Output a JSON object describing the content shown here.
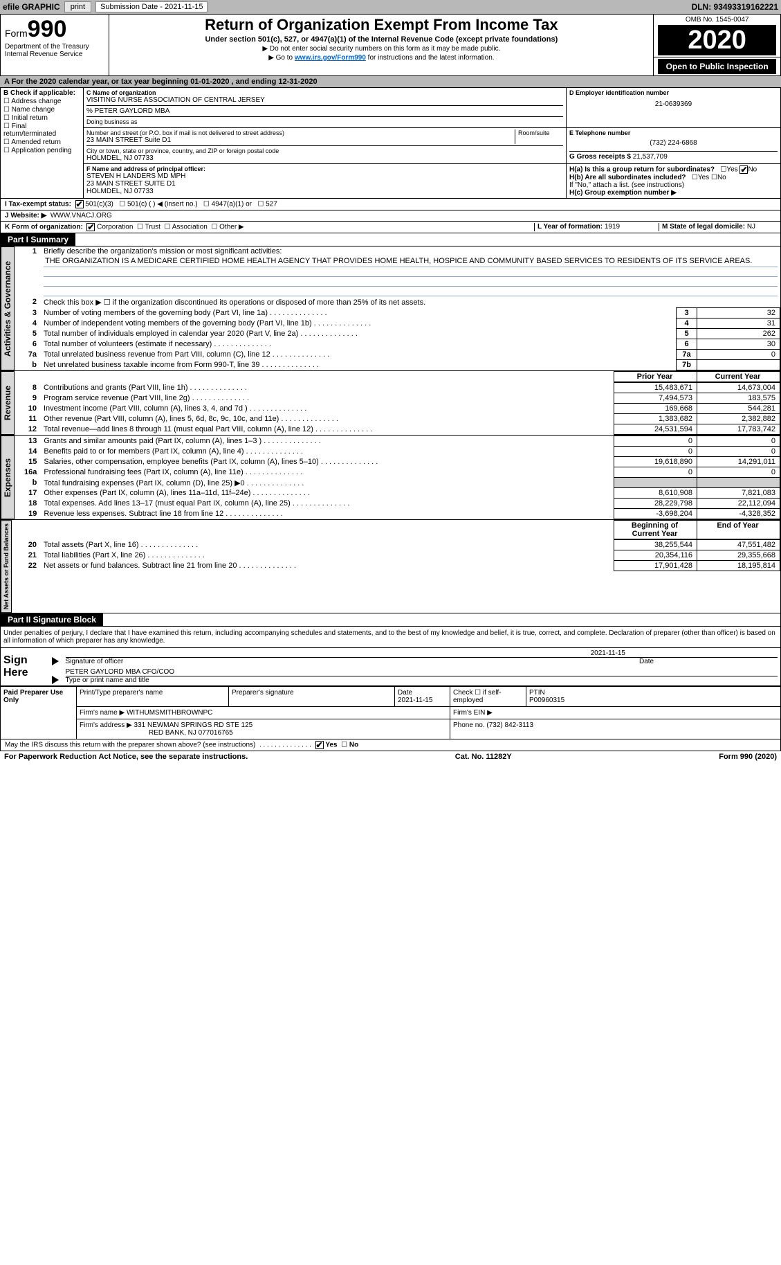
{
  "topbar": {
    "efile": "efile GRAPHIC",
    "print": "print",
    "subdate_label": "Submission Date - 2021-11-15",
    "dln": "DLN: 93493319162221"
  },
  "header": {
    "form_prefix": "Form",
    "form_num": "990",
    "dept": "Department of the Treasury\nInternal Revenue Service",
    "title": "Return of Organization Exempt From Income Tax",
    "subtitle": "Under section 501(c), 527, or 4947(a)(1) of the Internal Revenue Code (except private foundations)",
    "note1": "▶ Do not enter social security numbers on this form as it may be made public.",
    "note2_pre": "▶ Go to ",
    "note2_link": "www.irs.gov/Form990",
    "note2_post": " for instructions and the latest information.",
    "omb": "OMB No. 1545-0047",
    "year": "2020",
    "public": "Open to Public Inspection"
  },
  "row_a": "A For the 2020 calendar year, or tax year beginning 01-01-2020   , and ending 12-31-2020",
  "check_b": {
    "title": "B Check if applicable:",
    "items": [
      "Address change",
      "Name change",
      "Initial return",
      "Final return/terminated",
      "Amended return",
      "Application pending"
    ]
  },
  "block_c": {
    "label_name": "C Name of organization",
    "org_name": "VISITING NURSE ASSOCIATION OF CENTRAL JERSEY",
    "care_of": "% PETER GAYLORD MBA",
    "dba_label": "Doing business as",
    "street_label": "Number and street (or P.O. box if mail is not delivered to street address)",
    "room_label": "Room/suite",
    "street": "23 MAIN STREET Suite D1",
    "city_label": "City or town, state or province, country, and ZIP or foreign postal code",
    "city": "HOLMDEL, NJ  07733"
  },
  "block_d": {
    "label": "D Employer identification number",
    "ein": "21-0639369"
  },
  "block_e": {
    "label": "E Telephone number",
    "phone": "(732) 224-6868"
  },
  "block_g": {
    "label": "G Gross receipts $",
    "amount": "21,537,709"
  },
  "block_f": {
    "label": "F Name and address of principal officer:",
    "name": "STEVEN H LANDERS MD MPH",
    "street": "23 MAIN STREET SUITE D1",
    "city": "HOLMDEL, NJ  07733"
  },
  "block_h": {
    "ha": "H(a)  Is this a group return for subordinates?",
    "hb": "H(b)  Are all subordinates included?",
    "hb_note": "If \"No,\" attach a list. (see instructions)",
    "hc": "H(c)  Group exemption number ▶",
    "yes": "Yes",
    "no": "No"
  },
  "row_i": {
    "label": "I   Tax-exempt status:",
    "opts": [
      "501(c)(3)",
      "501(c) (  ) ◀ (insert no.)",
      "4947(a)(1) or",
      "527"
    ]
  },
  "row_j": {
    "label": "J   Website: ▶",
    "value": "WWW.VNACJ.ORG"
  },
  "row_k": {
    "label": "K Form of organization:",
    "opts": [
      "Corporation",
      "Trust",
      "Association",
      "Other ▶"
    ]
  },
  "row_l": {
    "label": "L Year of formation:",
    "value": "1919"
  },
  "row_m": {
    "label": "M State of legal domicile:",
    "value": "NJ"
  },
  "part1": {
    "title": "Part I      Summary"
  },
  "gov": {
    "q1": "Briefly describe the organization's mission or most significant activities:",
    "mission": "THE ORGANIZATION IS A MEDICARE CERTIFIED HOME HEALTH AGENCY THAT PROVIDES HOME HEALTH, HOSPICE AND COMMUNITY BASED SERVICES TO RESIDENTS OF ITS SERVICE AREAS.",
    "q2": "Check this box ▶ ☐  if the organization discontinued its operations or disposed of more than 25% of its net assets.",
    "lines": [
      {
        "n": "3",
        "label": "Number of voting members of the governing body (Part VI, line 1a)",
        "box": "3",
        "val": "32"
      },
      {
        "n": "4",
        "label": "Number of independent voting members of the governing body (Part VI, line 1b)",
        "box": "4",
        "val": "31"
      },
      {
        "n": "5",
        "label": "Total number of individuals employed in calendar year 2020 (Part V, line 2a)",
        "box": "5",
        "val": "262"
      },
      {
        "n": "6",
        "label": "Total number of volunteers (estimate if necessary)",
        "box": "6",
        "val": "30"
      },
      {
        "n": "7a",
        "label": "Total unrelated business revenue from Part VIII, column (C), line 12",
        "box": "7a",
        "val": "0"
      },
      {
        "n": "b",
        "label": "Net unrelated business taxable income from Form 990-T, line 39",
        "box": "7b",
        "val": ""
      }
    ]
  },
  "rev_hdr": {
    "prior": "Prior Year",
    "curr": "Current Year"
  },
  "revenue": [
    {
      "n": "8",
      "label": "Contributions and grants (Part VIII, line 1h)",
      "p": "15,483,671",
      "c": "14,673,004"
    },
    {
      "n": "9",
      "label": "Program service revenue (Part VIII, line 2g)",
      "p": "7,494,573",
      "c": "183,575"
    },
    {
      "n": "10",
      "label": "Investment income (Part VIII, column (A), lines 3, 4, and 7d )",
      "p": "169,668",
      "c": "544,281"
    },
    {
      "n": "11",
      "label": "Other revenue (Part VIII, column (A), lines 5, 6d, 8c, 9c, 10c, and 11e)",
      "p": "1,383,682",
      "c": "2,382,882"
    },
    {
      "n": "12",
      "label": "Total revenue—add lines 8 through 11 (must equal Part VIII, column (A), line 12)",
      "p": "24,531,594",
      "c": "17,783,742"
    }
  ],
  "expenses": [
    {
      "n": "13",
      "label": "Grants and similar amounts paid (Part IX, column (A), lines 1–3 )",
      "p": "0",
      "c": "0"
    },
    {
      "n": "14",
      "label": "Benefits paid to or for members (Part IX, column (A), line 4)",
      "p": "0",
      "c": "0"
    },
    {
      "n": "15",
      "label": "Salaries, other compensation, employee benefits (Part IX, column (A), lines 5–10)",
      "p": "19,618,890",
      "c": "14,291,011"
    },
    {
      "n": "16a",
      "label": "Professional fundraising fees (Part IX, column (A), line 11e)",
      "p": "0",
      "c": "0"
    },
    {
      "n": "b",
      "label": "Total fundraising expenses (Part IX, column (D), line 25) ▶0",
      "p": "",
      "c": "",
      "grey": true
    },
    {
      "n": "17",
      "label": "Other expenses (Part IX, column (A), lines 11a–11d, 11f–24e)",
      "p": "8,610,908",
      "c": "7,821,083"
    },
    {
      "n": "18",
      "label": "Total expenses. Add lines 13–17 (must equal Part IX, column (A), line 25)",
      "p": "28,229,798",
      "c": "22,112,094"
    },
    {
      "n": "19",
      "label": "Revenue less expenses. Subtract line 18 from line 12",
      "p": "-3,698,204",
      "c": "-4,328,352"
    }
  ],
  "net_hdr": {
    "beg": "Beginning of Current Year",
    "end": "End of Year"
  },
  "netassets": [
    {
      "n": "20",
      "label": "Total assets (Part X, line 16)",
      "p": "38,255,544",
      "c": "47,551,482"
    },
    {
      "n": "21",
      "label": "Total liabilities (Part X, line 26)",
      "p": "20,354,116",
      "c": "29,355,668"
    },
    {
      "n": "22",
      "label": "Net assets or fund balances. Subtract line 21 from line 20",
      "p": "17,901,428",
      "c": "18,195,814"
    }
  ],
  "part2": {
    "title": "Part II      Signature Block"
  },
  "sig": {
    "declare": "Under penalties of perjury, I declare that I have examined this return, including accompanying schedules and statements, and to the best of my knowledge and belief, it is true, correct, and complete. Declaration of preparer (other than officer) is based on all information of which preparer has any knowledge.",
    "sign_here": "Sign Here",
    "sig_officer": "Signature of officer",
    "date": "Date",
    "sig_date": "2021-11-15",
    "name_title": "PETER GAYLORD MBA  CFO/COO",
    "type_label": "Type or print name and title"
  },
  "prep": {
    "label": "Paid Preparer Use Only",
    "cols": {
      "name": "Print/Type preparer's name",
      "sig": "Preparer's signature",
      "date": "Date",
      "date_v": "2021-11-15",
      "check": "Check ☐ if self-employed",
      "ptin": "PTIN",
      "ptin_v": "P00960315"
    },
    "firm_name_l": "Firm's name   ▶",
    "firm_name": "WITHUMSMITHBROWNPC",
    "firm_ein_l": "Firm's EIN ▶",
    "firm_addr_l": "Firm's address ▶",
    "firm_addr": "331 NEWMAN SPRINGS RD STE 125",
    "firm_addr2": "RED BANK, NJ  077016765",
    "phone_l": "Phone no.",
    "phone": "(732) 842-3113"
  },
  "discuss": "May the IRS discuss this return with the preparer shown above? (see instructions)",
  "footer": {
    "left": "For Paperwork Reduction Act Notice, see the separate instructions.",
    "mid": "Cat. No. 11282Y",
    "right": "Form 990 (2020)"
  },
  "vlabels": {
    "gov": "Activities & Governance",
    "rev": "Revenue",
    "exp": "Expenses",
    "net": "Net Assets or Fund Balances"
  }
}
